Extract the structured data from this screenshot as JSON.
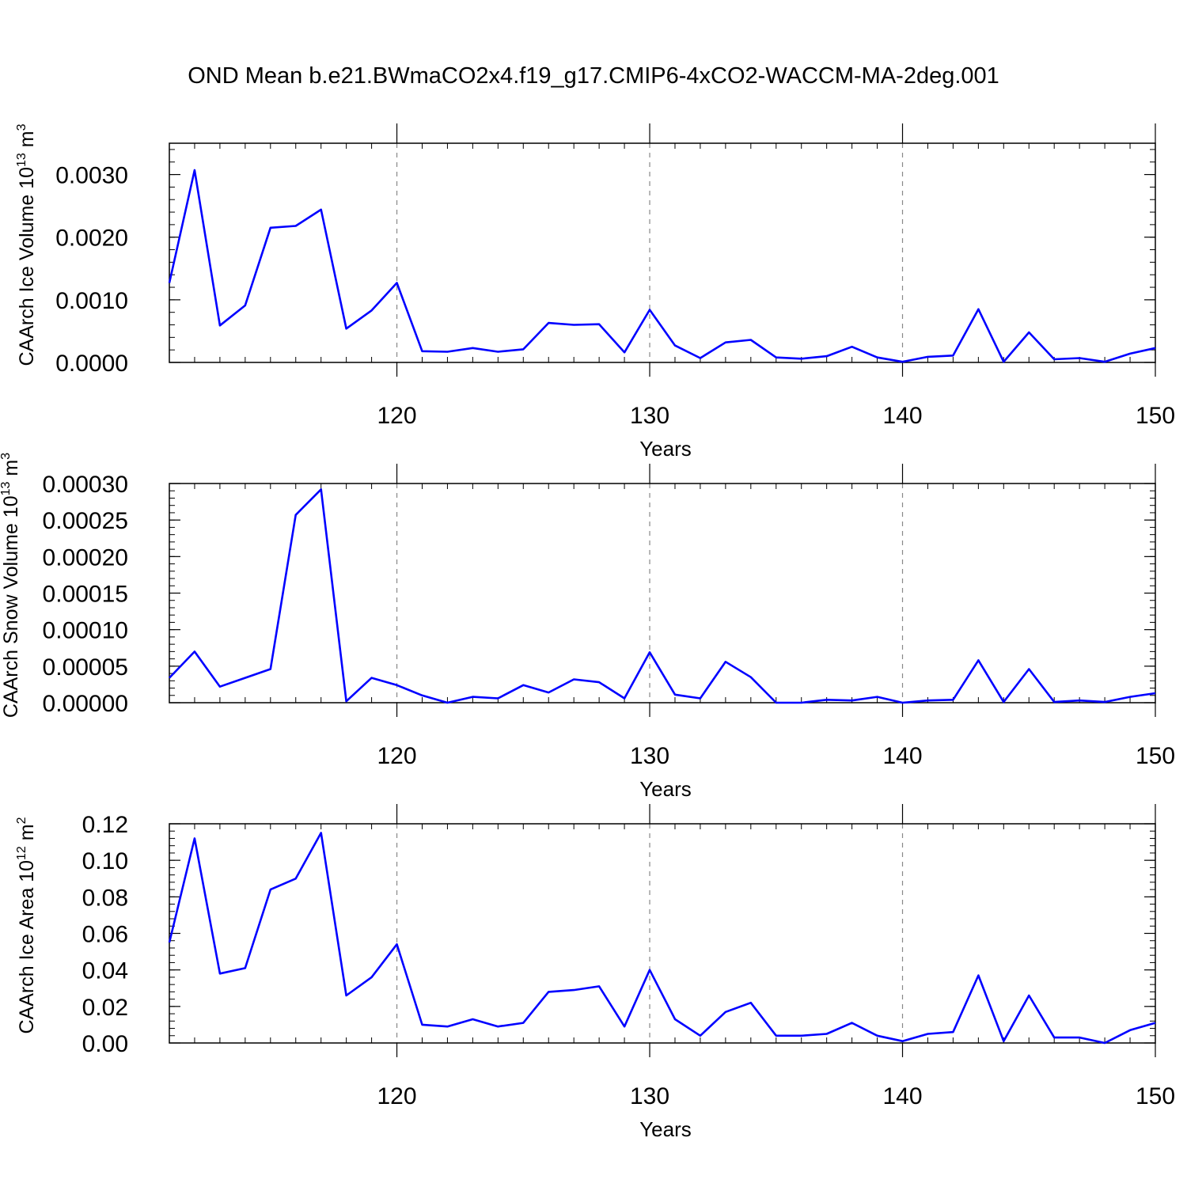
{
  "title": "OND Mean b.e21.BWmaCO2x4.f19_g17.CMIP6-4xCO2-WACCM-MA-2deg.001",
  "line_color": "#0000ff",
  "chart_data": [
    {
      "type": "line",
      "ylabel": "CAArch Ice Volume 10",
      "ylabel_exp": "13",
      "ylabel_unit": "m",
      "ylabel_unit_exp": "3",
      "xlabel": "Years",
      "xlim": [
        111,
        150
      ],
      "ylim": [
        0,
        0.0035
      ],
      "yticks": [
        0,
        0.001,
        0.002,
        0.003
      ],
      "ytick_labels": [
        "0.0000",
        "0.0010",
        "0.0020",
        "0.0030"
      ],
      "xticks": [
        120,
        130,
        140,
        150
      ],
      "xtick_labels": [
        "120",
        "130",
        "140",
        "150"
      ],
      "grid_x": [
        120,
        130,
        140
      ],
      "x": [
        111,
        112,
        113,
        114,
        115,
        116,
        117,
        118,
        119,
        120,
        121,
        122,
        123,
        124,
        125,
        126,
        127,
        128,
        129,
        130,
        131,
        132,
        133,
        134,
        135,
        136,
        137,
        138,
        139,
        140,
        141,
        142,
        143,
        144,
        145,
        146,
        147,
        148,
        149,
        150
      ],
      "values": [
        0.00127,
        0.00307,
        0.00059,
        0.00091,
        0.00215,
        0.00218,
        0.00244,
        0.00054,
        0.00083,
        0.00127,
        0.00018,
        0.00017,
        0.00023,
        0.00017,
        0.00021,
        0.00063,
        0.0006,
        0.00061,
        0.00016,
        0.00084,
        0.00027,
        7e-05,
        0.00032,
        0.00036,
        8e-05,
        6e-05,
        0.0001,
        0.00025,
        8e-05,
        1e-05,
        9e-05,
        0.00011,
        0.00085,
        1e-05,
        0.00048,
        5e-05,
        7e-05,
        1e-05,
        0.00014,
        0.00023
      ]
    },
    {
      "type": "line",
      "ylabel": "CAArch Snow Volume 10",
      "ylabel_exp": "13",
      "ylabel_unit": "m",
      "ylabel_unit_exp": "3",
      "xlabel": "Years",
      "xlim": [
        111,
        150
      ],
      "ylim": [
        0,
        0.0003
      ],
      "yticks": [
        0,
        5e-05,
        0.0001,
        0.00015,
        0.0002,
        0.00025,
        0.0003
      ],
      "ytick_labels": [
        "0.00000",
        "0.00005",
        "0.00010",
        "0.00015",
        "0.00020",
        "0.00025",
        "0.00030"
      ],
      "xticks": [
        120,
        130,
        140,
        150
      ],
      "xtick_labels": [
        "120",
        "130",
        "140",
        "150"
      ],
      "grid_x": [
        120,
        130,
        140
      ],
      "x": [
        111,
        112,
        113,
        114,
        115,
        116,
        117,
        118,
        119,
        120,
        121,
        122,
        123,
        124,
        125,
        126,
        127,
        128,
        129,
        130,
        131,
        132,
        133,
        134,
        135,
        136,
        137,
        138,
        139,
        140,
        141,
        142,
        143,
        144,
        145,
        146,
        147,
        148,
        149,
        150
      ],
      "values": [
        3.4e-05,
        7e-05,
        2.2e-05,
        3.4e-05,
        4.6e-05,
        0.000257,
        0.000292,
        2e-06,
        3.4e-05,
        2.4e-05,
        1e-05,
        0.0,
        8e-06,
        6e-06,
        2.4e-05,
        1.4e-05,
        3.2e-05,
        2.8e-05,
        6e-06,
        6.9e-05,
        1.1e-05,
        6e-06,
        5.6e-05,
        3.5e-05,
        0.0,
        0.0,
        4e-06,
        3e-06,
        8e-06,
        0.0,
        3e-06,
        4e-06,
        5.8e-05,
        1e-06,
        4.6e-05,
        1e-06,
        3e-06,
        1e-06,
        8e-06,
        1.3e-05
      ]
    },
    {
      "type": "line",
      "ylabel": "CAArch Ice Area 10",
      "ylabel_exp": "12",
      "ylabel_unit": "m",
      "ylabel_unit_exp": "2",
      "xlabel": "Years",
      "xlim": [
        111,
        150
      ],
      "ylim": [
        0,
        0.12
      ],
      "yticks": [
        0,
        0.02,
        0.04,
        0.06,
        0.08,
        0.1,
        0.12
      ],
      "ytick_labels": [
        "0.00",
        "0.02",
        "0.04",
        "0.06",
        "0.08",
        "0.10",
        "0.12"
      ],
      "xticks": [
        120,
        130,
        140,
        150
      ],
      "xtick_labels": [
        "120",
        "130",
        "140",
        "150"
      ],
      "grid_x": [
        120,
        130,
        140
      ],
      "x": [
        111,
        112,
        113,
        114,
        115,
        116,
        117,
        118,
        119,
        120,
        121,
        122,
        123,
        124,
        125,
        126,
        127,
        128,
        129,
        130,
        131,
        132,
        133,
        134,
        135,
        136,
        137,
        138,
        139,
        140,
        141,
        142,
        143,
        144,
        145,
        146,
        147,
        148,
        149,
        150
      ],
      "values": [
        0.055,
        0.112,
        0.038,
        0.041,
        0.084,
        0.09,
        0.115,
        0.026,
        0.036,
        0.054,
        0.01,
        0.009,
        0.013,
        0.009,
        0.011,
        0.028,
        0.029,
        0.031,
        0.009,
        0.04,
        0.013,
        0.004,
        0.017,
        0.022,
        0.004,
        0.004,
        0.005,
        0.011,
        0.004,
        0.001,
        0.005,
        0.006,
        0.037,
        0.001,
        0.026,
        0.003,
        0.003,
        0.0,
        0.007,
        0.011
      ]
    }
  ]
}
